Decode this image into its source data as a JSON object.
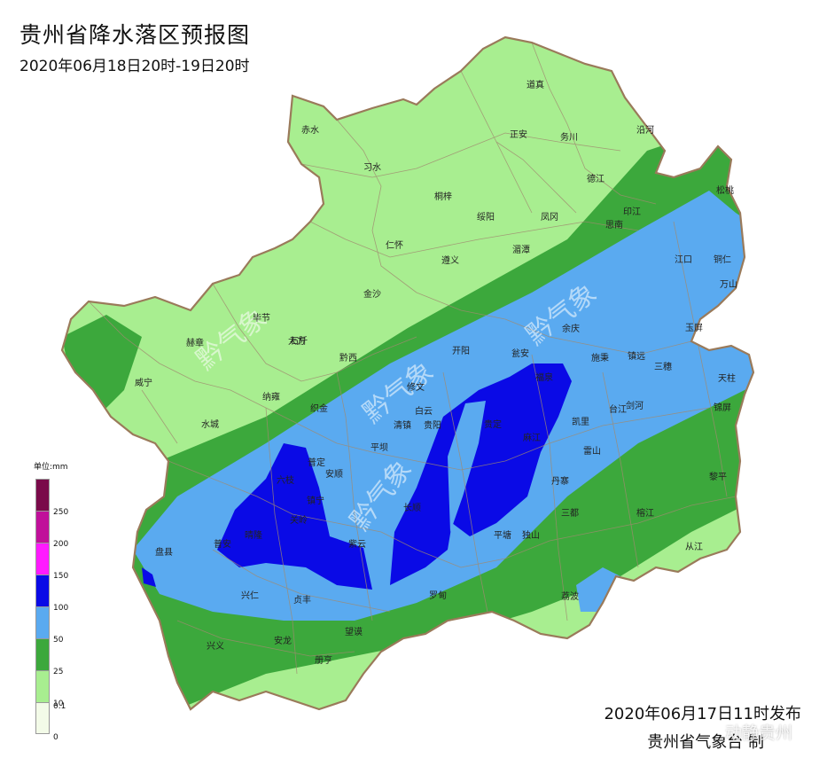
{
  "title": "贵州省降水落区预报图",
  "subtitle": "2020年06月18日20时-19日20时",
  "issue_time": "2020年06月17日11时发布",
  "issuer": "贵州省气象台 制",
  "watermark_corner": "动静贵州",
  "watermark_map": "黔气象",
  "legend": {
    "unit": "单位:mm",
    "classes": [
      {
        "label": "250",
        "color": "#7a0a4a"
      },
      {
        "label": "200",
        "color": "#c0109a"
      },
      {
        "label": "150",
        "color": "#ff1aff"
      },
      {
        "label": "100",
        "color": "#0a0ae6"
      },
      {
        "label": "50",
        "color": "#5aaaf0"
      },
      {
        "label": "25",
        "color": "#3ca83c"
      },
      {
        "label": "10",
        "color": "#a8ee90"
      },
      {
        "label": "0.1",
        "color": "#f3fbe8"
      },
      {
        "label": "0",
        "color": ""
      }
    ]
  },
  "cities": [
    {
      "name": "道真"
    },
    {
      "name": "赤水"
    },
    {
      "name": "习水"
    },
    {
      "name": "正安"
    },
    {
      "name": "务川"
    },
    {
      "name": "沿河"
    },
    {
      "name": "桐梓"
    },
    {
      "name": "绥阳"
    },
    {
      "name": "凤冈"
    },
    {
      "name": "德江"
    },
    {
      "name": "松桃"
    },
    {
      "name": "印江"
    },
    {
      "name": "思南"
    },
    {
      "name": "仁怀"
    },
    {
      "name": "遵义"
    },
    {
      "name": "湄潭"
    },
    {
      "name": "江口"
    },
    {
      "name": "铜仁"
    },
    {
      "name": "万山"
    },
    {
      "name": "金沙"
    },
    {
      "name": "毕节"
    },
    {
      "name": "石阡"
    },
    {
      "name": "大方"
    },
    {
      "name": "赫章"
    },
    {
      "name": "余庆"
    },
    {
      "name": "玉屏"
    },
    {
      "name": "黔西"
    },
    {
      "name": "开阳"
    },
    {
      "name": "瓮安"
    },
    {
      "name": "施秉"
    },
    {
      "name": "镇远"
    },
    {
      "name": "三穗"
    },
    {
      "name": "威宁"
    },
    {
      "name": "天柱"
    },
    {
      "name": "修文"
    },
    {
      "name": "纳雍"
    },
    {
      "name": "福泉"
    },
    {
      "name": "剑河"
    },
    {
      "name": "白云"
    },
    {
      "name": "织金"
    },
    {
      "name": "台江"
    },
    {
      "name": "锦屏"
    },
    {
      "name": "清镇"
    },
    {
      "name": "贵阳"
    },
    {
      "name": "凯里"
    },
    {
      "name": "贵定"
    },
    {
      "name": "水城"
    },
    {
      "name": "平坝"
    },
    {
      "name": "麻江"
    },
    {
      "name": "雷山"
    },
    {
      "name": "普定"
    },
    {
      "name": "黎平"
    },
    {
      "name": "安顺"
    },
    {
      "name": "六枝"
    },
    {
      "name": "丹寨"
    },
    {
      "name": "长顺"
    },
    {
      "name": "镇宁"
    },
    {
      "name": "三都"
    },
    {
      "name": "关岭"
    },
    {
      "name": "榕江"
    },
    {
      "name": "平塘"
    },
    {
      "name": "独山"
    },
    {
      "name": "普安"
    },
    {
      "name": "晴隆"
    },
    {
      "name": "紫云"
    },
    {
      "name": "盘县"
    },
    {
      "name": "从江"
    },
    {
      "name": "荔波"
    },
    {
      "name": "兴仁"
    },
    {
      "name": "罗甸"
    },
    {
      "name": "贞丰"
    },
    {
      "name": "望谟"
    },
    {
      "name": "兴义"
    },
    {
      "name": "安龙"
    },
    {
      "name": "册亨"
    }
  ]
}
